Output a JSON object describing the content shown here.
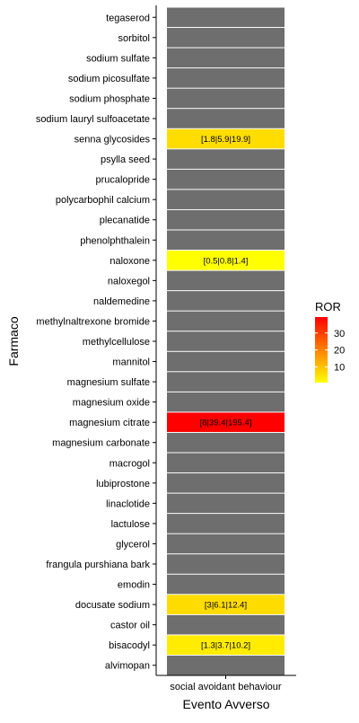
{
  "chart_data": {
    "type": "heatmap",
    "xlabel": "Evento Avverso",
    "ylabel": "Farmaco",
    "x_categories": [
      "social avoidant behaviour"
    ],
    "y_categories": [
      "tegaserod",
      "sorbitol",
      "sodium sulfate",
      "sodium picosulfate",
      "sodium phosphate",
      "sodium lauryl sulfoacetate",
      "senna glycosides",
      "psylla seed",
      "prucalopride",
      "polycarbophil calcium",
      "plecanatide",
      "phenolphthalein",
      "naloxone",
      "naloxegol",
      "naldemedine",
      "methylnaltrexone bromide",
      "methylcellulose",
      "mannitol",
      "magnesium sulfate",
      "magnesium oxide",
      "magnesium citrate",
      "magnesium carbonate",
      "macrogol",
      "lubiprostone",
      "linaclotide",
      "lactulose",
      "glycerol",
      "frangula purshiana bark",
      "emodin",
      "docusate sodium",
      "castor oil",
      "bisacodyl",
      "alvimopan"
    ],
    "cells": [
      {
        "drug": "senna glycosides",
        "ror": 5.9,
        "label": "[1.8|5.9|19.9]"
      },
      {
        "drug": "naloxone",
        "ror": 0.8,
        "label": "[0.5|0.8|1.4]"
      },
      {
        "drug": "magnesium citrate",
        "ror": 39.4,
        "label": "[8|39.4|195.4]"
      },
      {
        "drug": "docusate sodium",
        "ror": 6.1,
        "label": "[3|6.1|12.4]"
      },
      {
        "drug": "bisacodyl",
        "ror": 3.7,
        "label": "[1.3|3.7|10.2]"
      }
    ],
    "legend": {
      "title": "ROR",
      "ticks": [
        10,
        20,
        30
      ],
      "range": [
        0.8,
        39.4
      ],
      "low_color": "#FFFF00",
      "high_color": "#FF0000",
      "placement": "right"
    },
    "colors": {
      "na_fill": "#6E6E6E",
      "text": "#000000"
    }
  }
}
